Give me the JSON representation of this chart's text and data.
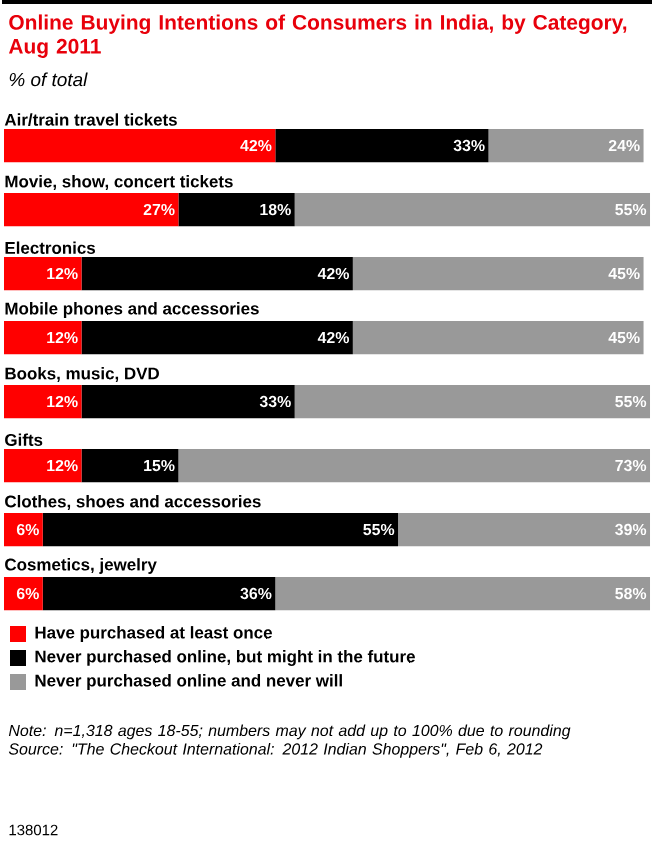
{
  "chart_data": {
    "type": "bar",
    "orientation": "horizontal",
    "stacked": true,
    "legend": "bottom",
    "tick_labels": false,
    "title": "Online Buying Intentions of Consumers in India, by Category, Aug 2011",
    "subtitle": "% of total",
    "categories": [
      "Air/train travel tickets",
      "Movie, show, concert tickets",
      "Electronics",
      "Mobile phones and accessories",
      "Books, music, DVD",
      "Gifts",
      "Clothes, shoes and accessories",
      "Cosmetics, jewelry"
    ],
    "series": [
      {
        "name": "Have purchased at least once",
        "color": "#ff0000",
        "values": [
          42,
          27,
          12,
          12,
          12,
          12,
          6,
          6
        ],
        "value_labels": [
          "42%",
          "27%",
          "12%",
          "12%",
          "12%",
          "12%",
          "6%",
          "6%"
        ]
      },
      {
        "name": "Never purchased online, but might in the future",
        "color": "#000000",
        "values": [
          33,
          18,
          42,
          42,
          33,
          15,
          55,
          36
        ],
        "value_labels": [
          "33%",
          "18%",
          "42%",
          "42%",
          "33%",
          "15%",
          "55%",
          "36%"
        ]
      },
      {
        "name": "Never purchased online and never will",
        "color": "#999999",
        "values": [
          24,
          55,
          45,
          45,
          55,
          73,
          39,
          58
        ],
        "value_labels": [
          "24%",
          "55%",
          "45%",
          "45%",
          "55%",
          "73%",
          "39%",
          "58%"
        ]
      }
    ],
    "annotations": [
      "Note: n=1,318 ages 18-55; numbers may not add up to 100% due to rounding",
      "Source: \"The Checkout International: 2012 Indian Shoppers\", Feb 6, 2012",
      "138012"
    ]
  }
}
